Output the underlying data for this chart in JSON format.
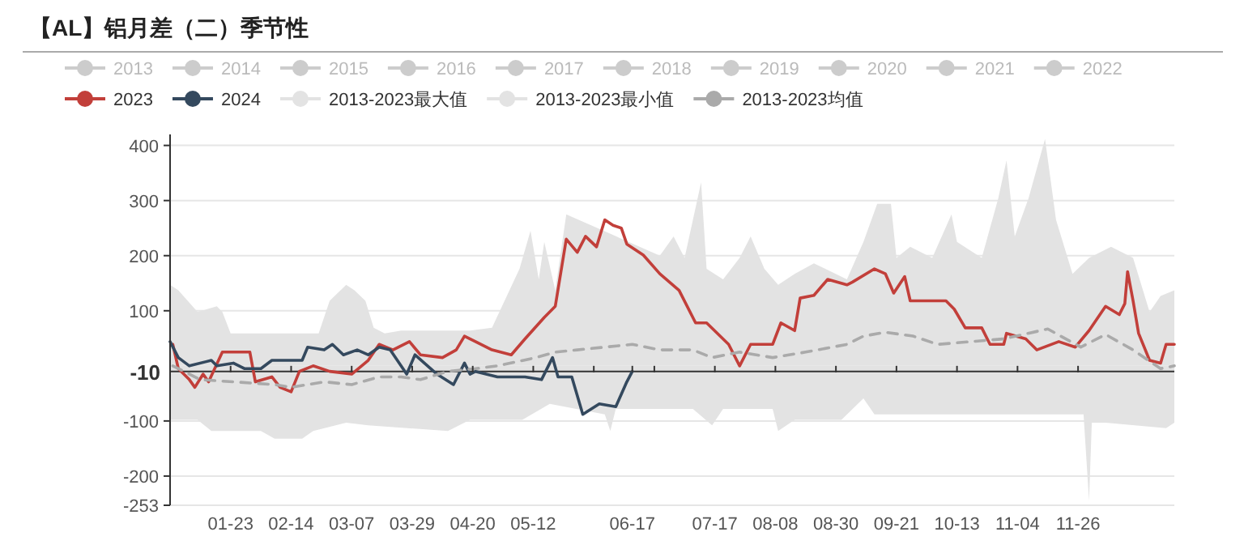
{
  "chart_data": {
    "type": "line",
    "title": "【AL】铝月差（二）季节性",
    "legend": "top",
    "grid": "y",
    "marker": "none",
    "xlim": [
      "--01-01",
      "--12-31"
    ],
    "ylim": [
      -253,
      420
    ],
    "xticks": [
      {
        "value": "--01-23",
        "label": "01-23"
      },
      {
        "value": "--02-14",
        "label": "02-14"
      },
      {
        "value": "--03-07",
        "label": "03-07"
      },
      {
        "value": "--03-29",
        "label": "03-29"
      },
      {
        "value": "--04-20",
        "label": "04-20"
      },
      {
        "value": "--05-12",
        "label": "05-12"
      },
      {
        "value": "--06-03",
        "label": null
      },
      {
        "value": "--06-17",
        "label": "06-17"
      },
      {
        "value": "--06-25",
        "label": null
      },
      {
        "value": "--07-17",
        "label": "07-17"
      },
      {
        "value": "--08-08",
        "label": "08-08"
      },
      {
        "value": "--08-30",
        "label": "08-30"
      },
      {
        "value": "--09-21",
        "label": "09-21"
      },
      {
        "value": "--10-13",
        "label": "10-13"
      },
      {
        "value": "--11-04",
        "label": "11-04"
      },
      {
        "value": "--11-26",
        "label": "11-26"
      }
    ],
    "yticks": [
      -253,
      -200,
      -100,
      100,
      200,
      300,
      400
    ],
    "ref_lines": [
      {
        "axis": "y",
        "value": -10,
        "label": "-10",
        "color": "#333333"
      }
    ],
    "series": [
      {
        "name": "2013",
        "color": "#cccccc"
      },
      {
        "name": "2014",
        "color": "#cccccc"
      },
      {
        "name": "2015",
        "color": "#cccccc"
      },
      {
        "name": "2016",
        "color": "#cccccc"
      },
      {
        "name": "2017",
        "color": "#cccccc"
      },
      {
        "name": "2018",
        "color": "#cccccc"
      },
      {
        "name": "2019",
        "color": "#cccccc"
      },
      {
        "name": "2020",
        "color": "#cccccc"
      },
      {
        "name": "2021",
        "color": "#cccccc"
      },
      {
        "name": "2022",
        "color": "#cccccc"
      },
      {
        "name": "2023",
        "color": "#c23f3a",
        "type": "line",
        "x": [
          "--01-02",
          "--01-04",
          "--01-08",
          "--01-10",
          "--01-13",
          "--01-15",
          "--01-20",
          "--01-30",
          "--02-01",
          "--02-07",
          "--02-10",
          "--02-14",
          "--02-17",
          "--02-22",
          "--02-28",
          "--03-07",
          "--03-13",
          "--03-17",
          "--03-22",
          "--03-28",
          "--04-01",
          "--04-09",
          "--04-14",
          "--04-17",
          "--04-21",
          "--04-27",
          "--05-04",
          "--05-09",
          "--05-16",
          "--05-20",
          "--05-24",
          "--05-28",
          "--05-31",
          "--06-04",
          "--06-07",
          "--06-10",
          "--06-13",
          "--06-15",
          "--06-21",
          "--06-27",
          "--07-04",
          "--07-10",
          "--07-14",
          "--07-22",
          "--07-26",
          "--07-30",
          "--08-07",
          "--08-10",
          "--08-15",
          "--08-17",
          "--08-22",
          "--08-27",
          "--09-03",
          "--09-05",
          "--09-13",
          "--09-17",
          "--09-20",
          "--09-24",
          "--09-26",
          "--10-09",
          "--10-12",
          "--10-16",
          "--10-22",
          "--10-25",
          "--10-30",
          "--10-31",
          "--11-07",
          "--11-11",
          "--11-19",
          "--11-25",
          "--11-30",
          "--12-06",
          "--12-11",
          "--12-13",
          "--12-14",
          "--12-16",
          "--12-18",
          "--12-22",
          "--12-26",
          "--12-28",
          "--12-31"
        ],
        "values": [
          39,
          -5,
          -25,
          -39,
          -15,
          -29,
          25,
          25,
          -29,
          -20,
          -39,
          -47,
          -10,
          0,
          -10,
          -15,
          10,
          39,
          29,
          44,
          20,
          15,
          29,
          54,
          44,
          29,
          20,
          49,
          88,
          108,
          230,
          206,
          235,
          216,
          265,
          255,
          250,
          221,
          201,
          167,
          137,
          78,
          78,
          39,
          0,
          39,
          39,
          78,
          64,
          123,
          128,
          157,
          147,
          152,
          176,
          167,
          132,
          162,
          118,
          118,
          103,
          69,
          69,
          39,
          39,
          59,
          49,
          29,
          44,
          34,
          64,
          108,
          93,
          113,
          171,
          118,
          59,
          10,
          5,
          39,
          39
        ]
      },
      {
        "name": "2024",
        "color": "#34495e",
        "type": "line",
        "x": [
          "--01-01",
          "--01-04",
          "--01-08",
          "--01-16",
          "--01-18",
          "--01-24",
          "--01-28",
          "--02-03",
          "--02-07",
          "--02-18",
          "--02-20",
          "--02-26",
          "--02-29",
          "--03-04",
          "--03-09",
          "--03-13",
          "--03-17",
          "--03-21",
          "--03-27",
          "--03-30",
          "--04-07",
          "--04-13",
          "--04-17",
          "--04-19",
          "--04-21",
          "--04-29",
          "--05-09",
          "--05-15",
          "--05-19",
          "--05-21",
          "--05-26",
          "--05-30",
          "--06-05",
          "--06-11",
          "--06-15",
          "--06-17"
        ],
        "values": [
          44,
          15,
          0,
          10,
          0,
          5,
          -5,
          -5,
          10,
          10,
          34,
          29,
          39,
          20,
          29,
          20,
          34,
          29,
          -15,
          20,
          -15,
          -34,
          5,
          -15,
          -10,
          -20,
          -20,
          -25,
          15,
          -20,
          -20,
          -88,
          -69,
          -74,
          -29,
          -10
        ]
      },
      {
        "name": "2013-2023最大值",
        "color": "#e3e3e3",
        "type": "area",
        "x": [
          "--01-01",
          "--01-04",
          "--01-11",
          "--01-18",
          "--01-20",
          "--01-23",
          "--01-24",
          "--02-24",
          "--02-28",
          "--03-05",
          "--03-08",
          "--03-12",
          "--03-15",
          "--03-19",
          "--03-25",
          "--04-15",
          "--04-19",
          "--04-27",
          "--05-07",
          "--05-11",
          "--05-14",
          "--05-16",
          "--05-20",
          "--05-24",
          "--06-27",
          "--07-02",
          "--07-06",
          "--07-12",
          "--07-14",
          "--07-20",
          "--07-26",
          "--07-30",
          "--08-04",
          "--08-09",
          "--08-15",
          "--08-22",
          "--09-03",
          "--09-09",
          "--09-14",
          "--09-19",
          "--09-21",
          "--09-26",
          "--10-04",
          "--10-11",
          "--10-13",
          "--10-22",
          "--10-28",
          "--10-31",
          "--11-03",
          "--11-08",
          "--11-14",
          "--11-18",
          "--11-24",
          "--11-30",
          "--12-08",
          "--12-16",
          "--12-22",
          "--12-26",
          "--12-31"
        ],
        "values": [
          147,
          137,
          98,
          108,
          98,
          59,
          59,
          59,
          118,
          147,
          137,
          118,
          69,
          59,
          64,
          64,
          64,
          69,
          176,
          245,
          157,
          225,
          137,
          275,
          200,
          235,
          196,
          333,
          176,
          157,
          196,
          235,
          176,
          147,
          167,
          186,
          157,
          225,
          294,
          294,
          196,
          216,
          196,
          275,
          225,
          196,
          304,
          373,
          235,
          304,
          412,
          265,
          167,
          196,
          216,
          196,
          98,
          127,
          137
        ]
      },
      {
        "name": "2013-2023最小值",
        "color": "#e3e3e3",
        "type": "area",
        "x": [
          "--01-01",
          "--01-11",
          "--01-16",
          "--02-03",
          "--02-08",
          "--02-18",
          "--02-22",
          "--03-05",
          "--03-13",
          "--04-11",
          "--04-19",
          "--05-08",
          "--05-18",
          "--06-07",
          "--06-09",
          "--06-11",
          "--07-09",
          "--07-16",
          "--07-20",
          "--08-07",
          "--08-09",
          "--08-15",
          "--09-01",
          "--09-09",
          "--09-13",
          "--10-28",
          "--11-28",
          "--11-30",
          "--12-01",
          "--12-06",
          "--12-28",
          "--12-31"
        ],
        "values": [
          -98,
          -98,
          -118,
          -118,
          -132,
          -132,
          -118,
          -103,
          -108,
          -118,
          -98,
          -98,
          -69,
          -88,
          -118,
          -78,
          -78,
          -108,
          -78,
          -78,
          -118,
          -98,
          -98,
          -59,
          -88,
          -88,
          -88,
          -245,
          -103,
          -103,
          -113,
          -103
        ]
      },
      {
        "name": "2013-2023均值",
        "color": "#aaaaaa",
        "type": "line",
        "line_style": "dashed",
        "x": [
          "--01-02",
          "--01-12",
          "--01-24",
          "--02-08",
          "--02-14",
          "--02-26",
          "--03-07",
          "--03-17",
          "--03-25",
          "--04-01",
          "--04-11",
          "--04-21",
          "--04-29",
          "--05-13",
          "--05-20",
          "--05-28",
          "--06-07",
          "--06-17",
          "--06-27",
          "--07-09",
          "--07-16",
          "--07-26",
          "--08-07",
          "--08-19",
          "--09-03",
          "--09-09",
          "--09-17",
          "--09-27",
          "--10-06",
          "--10-18",
          "--10-30",
          "--11-15",
          "--11-27",
          "--12-06",
          "--12-16",
          "--12-26",
          "--12-31"
        ],
        "values": [
          0,
          -25,
          -29,
          -34,
          -39,
          -29,
          -34,
          -20,
          -20,
          -25,
          -10,
          -5,
          0,
          15,
          25,
          29,
          34,
          39,
          29,
          29,
          15,
          25,
          15,
          25,
          39,
          54,
          61,
          54,
          39,
          44,
          49,
          67,
          34,
          57,
          29,
          -5,
          0
        ]
      }
    ]
  }
}
